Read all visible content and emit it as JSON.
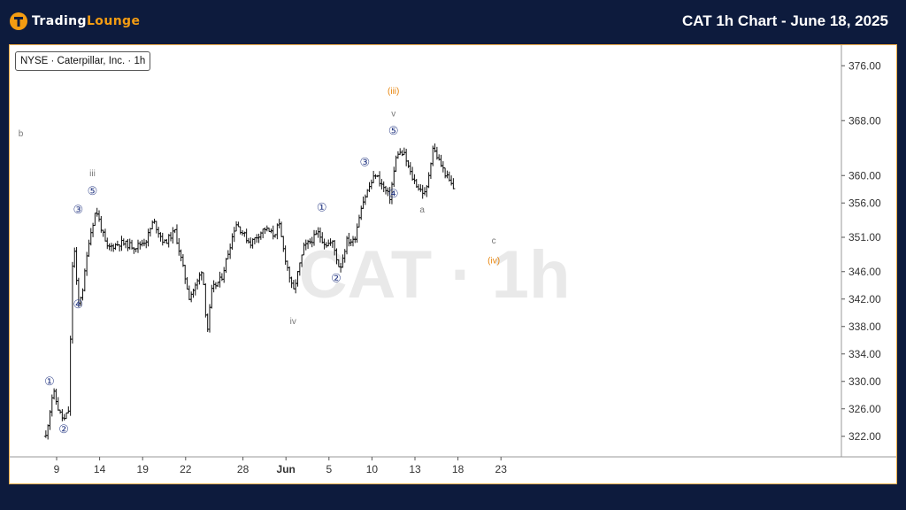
{
  "header": {
    "brand_prefix": "Trading",
    "brand_suffix": "Lounge",
    "title": "CAT 1h Chart - June 18, 2025"
  },
  "symbol_badge": "NYSE · Caterpillar, Inc. · 1h",
  "watermark": "CAT · 1h",
  "colors": {
    "background": "#0d1b3d",
    "accent": "#f39c12",
    "wave_label": "#2c3e87",
    "orange_label": "#e8850c"
  },
  "chart_data": {
    "type": "ohlc",
    "ylim": [
      319,
      379
    ],
    "y_ticks": [
      {
        "v": 376,
        "label": "376.00"
      },
      {
        "v": 368,
        "label": "368.00"
      },
      {
        "v": 360,
        "label": "360.00"
      },
      {
        "v": 356,
        "label": "356.00"
      },
      {
        "v": 351,
        "label": "351.00"
      },
      {
        "v": 346,
        "label": "346.00"
      },
      {
        "v": 342,
        "label": "342.00"
      },
      {
        "v": 338,
        "label": "338.00"
      },
      {
        "v": 334,
        "label": "334.00"
      },
      {
        "v": 330,
        "label": "330.00"
      },
      {
        "v": 326,
        "label": "326.00"
      },
      {
        "v": 322,
        "label": "322.00"
      }
    ],
    "x_ticks": [
      {
        "day": "May 9",
        "label": "9",
        "bold": false
      },
      {
        "day": "May 14",
        "label": "14",
        "bold": false
      },
      {
        "day": "May 19",
        "label": "19",
        "bold": false
      },
      {
        "day": "May 22",
        "label": "22",
        "bold": false
      },
      {
        "day": "May 28",
        "label": "28",
        "bold": false
      },
      {
        "day": "Jun 2",
        "label": "Jun",
        "bold": true
      },
      {
        "day": "Jun 5",
        "label": "5",
        "bold": false
      },
      {
        "day": "Jun 10",
        "label": "10",
        "bold": false
      },
      {
        "day": "Jun 13",
        "label": "13",
        "bold": false
      },
      {
        "day": "Jun 18",
        "label": "18",
        "bold": false
      },
      {
        "day": "Jun 23",
        "label": "23",
        "bold": false
      }
    ],
    "anchors": [
      [
        "May 8",
        322.0
      ],
      [
        "May 8",
        328.7
      ],
      [
        "May 9",
        325.6
      ],
      [
        "May 9",
        324.3
      ],
      [
        "May 9",
        325.8
      ],
      [
        "May 12",
        351.5
      ],
      [
        "May 12",
        341.0
      ],
      [
        "May 12",
        343.6
      ],
      [
        "May 13",
        350.5
      ],
      [
        "May 13",
        355.1
      ],
      [
        "May 14",
        349.4
      ],
      [
        "May 15",
        350.2
      ],
      [
        "May 16",
        349.6
      ],
      [
        "May 19",
        350.6
      ],
      [
        "May 19",
        353.4
      ],
      [
        "May 20",
        350.1
      ],
      [
        "May 21",
        351.9
      ],
      [
        "May 21",
        347.2
      ],
      [
        "May 22",
        342.3
      ],
      [
        "May 22",
        344.1
      ],
      [
        "May 23",
        346.6
      ],
      [
        "May 23",
        337.0
      ],
      [
        "May 23",
        343.4
      ],
      [
        "May 26",
        345.0
      ],
      [
        "May 27",
        353.1
      ],
      [
        "May 28",
        350.1
      ],
      [
        "May 29",
        352.3
      ],
      [
        "May 30",
        351.3
      ],
      [
        "May 30",
        353.0
      ],
      [
        "May 30",
        349.1
      ],
      [
        "Jun 2",
        342.9
      ],
      [
        "Jun 3",
        349.5
      ],
      [
        "Jun 3",
        350.5
      ],
      [
        "Jun 4",
        351.6
      ],
      [
        "Jun 4",
        350.0
      ],
      [
        "Jun 5",
        350.2
      ],
      [
        "Jun 5",
        346.3
      ],
      [
        "Jun 6",
        350.5
      ],
      [
        "Jun 6",
        350.4
      ],
      [
        "Jun 9",
        355.6
      ],
      [
        "Jun 9",
        358.1
      ],
      [
        "Jun 10",
        360.2
      ],
      [
        "Jun 10",
        358.4
      ],
      [
        "Jun 11",
        356.8
      ],
      [
        "Jun 11",
        363.4
      ],
      [
        "Jun 12",
        363.0
      ],
      [
        "Jun 12",
        359.9
      ],
      [
        "Jun 13",
        358.2
      ],
      [
        "Jun 13",
        357.2
      ],
      [
        "Jun 16",
        364.1
      ],
      [
        "Jun 16",
        361.8
      ],
      [
        "Jun 17",
        359.7
      ],
      [
        "Jun 17",
        357.9
      ]
    ],
    "wave_labels": [
      {
        "day": "May 8",
        "price": 330.0,
        "text": "①",
        "color": "#2c3e87"
      },
      {
        "day": "May 9",
        "price": 323.0,
        "text": "②",
        "color": "#2c3e87"
      },
      {
        "day": "May 12",
        "price": 355.0,
        "text": "③",
        "color": "#2c3e87"
      },
      {
        "day": "May 12",
        "price": 341.2,
        "text": "④",
        "color": "#2c3e87"
      },
      {
        "day": "May 13",
        "price": 357.7,
        "text": "⑤",
        "color": "#2c3e87"
      },
      {
        "day": "May 13",
        "price": 360.4,
        "text": "iii",
        "color": "#777777"
      },
      {
        "day": "Jun 2",
        "price": 338.9,
        "text": "iv",
        "color": "#777777"
      },
      {
        "day": "Jun 4",
        "price": 355.3,
        "text": "①",
        "color": "#2c3e87"
      },
      {
        "day": "Jun 5",
        "price": 345.0,
        "text": "②",
        "color": "#2c3e87"
      },
      {
        "day": "Jun 9",
        "price": 361.9,
        "text": "③",
        "color": "#2c3e87"
      },
      {
        "day": "Jun 11",
        "price": 357.3,
        "text": "④",
        "color": "#2c3e87"
      },
      {
        "day": "Jun 11",
        "price": 366.5,
        "text": "⑤",
        "color": "#2c3e87"
      },
      {
        "day": "Jun 11",
        "price": 369.1,
        "text": "v",
        "color": "#777777"
      },
      {
        "day": "Jun 11",
        "price": 372.4,
        "text": "(iii)",
        "color": "#e8850c"
      },
      {
        "day": "Jun 13",
        "price": 355.1,
        "text": "a",
        "color": "#777777"
      },
      {
        "day": "Jun 14",
        "price": 366.2,
        "text": "b",
        "color": "#777777"
      },
      {
        "day": "Jun 20",
        "price": 350.6,
        "text": "c",
        "color": "#777777"
      },
      {
        "day": "Jun 20",
        "price": 347.7,
        "text": "(iv)",
        "color": "#e8850c"
      }
    ]
  }
}
